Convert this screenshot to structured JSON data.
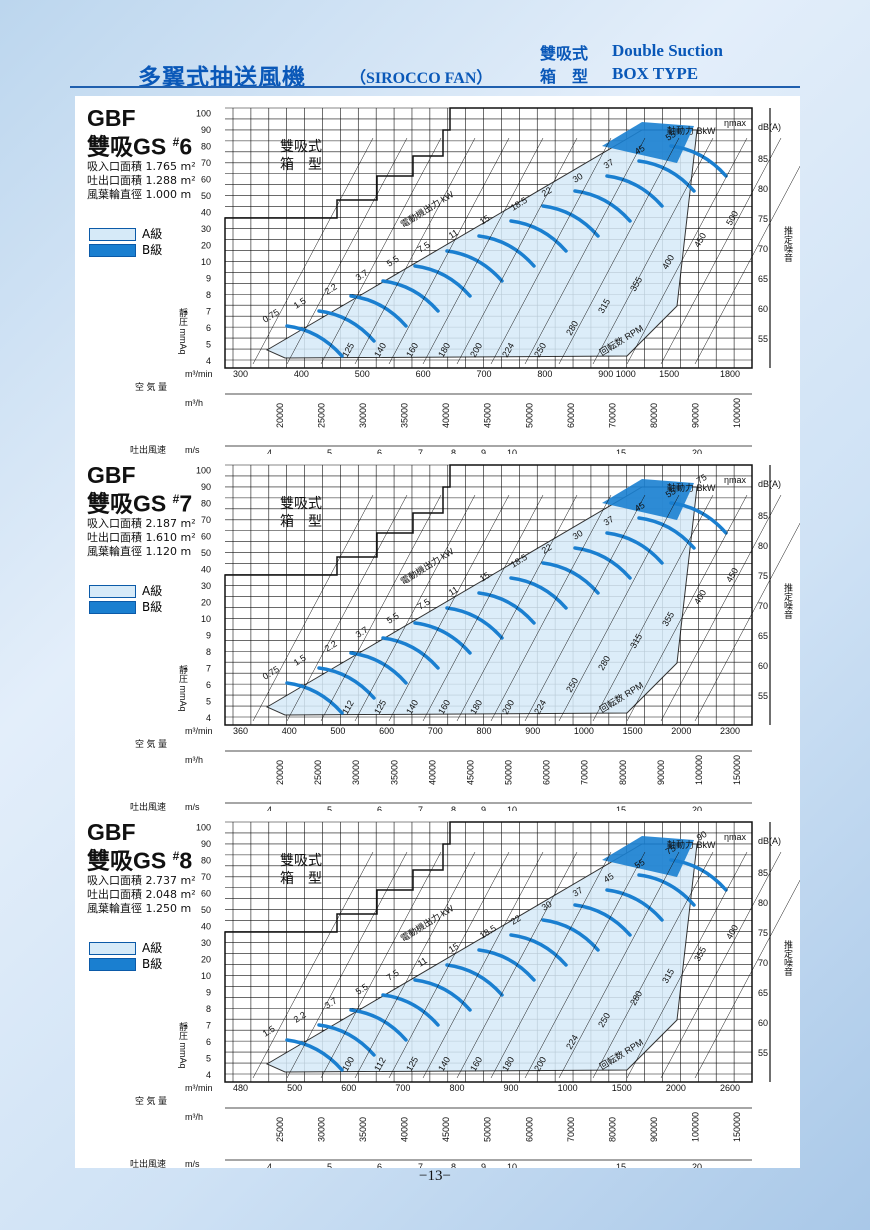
{
  "header": {
    "title_zh": "多翼式抽送風機",
    "title_en": "（SIROCCO FAN）",
    "sub_zh_1": "雙吸式",
    "sub_zh_2": "箱　型",
    "sub_en_1": "Double Suction",
    "sub_en_2": "BOX TYPE"
  },
  "common": {
    "box_type_1": "雙吸式",
    "box_type_2": "箱　型",
    "legend_a": "A級",
    "legend_b": "B級",
    "static_pressure": "靜圧 mmAq",
    "noise": "推定噪音",
    "airflow_label": "空 気 量",
    "airflow_min_unit": "m³/min",
    "airflow_h_unit": "m³/h",
    "outlet_velocity": "吐出風速",
    "velocity_unit": "m/s",
    "power_label": "電動機出力 kW",
    "shaft_power": "軸動力 BkW",
    "eta": "ηmax",
    "db_unit": "dB(A)",
    "rpm_label": "回転数 RPM",
    "y_ticks": [
      "4",
      "5",
      "6",
      "7",
      "8",
      "9",
      "10",
      "20",
      "30",
      "40",
      "50",
      "60",
      "70",
      "80",
      "90",
      "100"
    ],
    "db_ticks": [
      "55",
      "60",
      "65",
      "70",
      "75",
      "80",
      "85"
    ],
    "velocity_ticks": [
      "4",
      "5",
      "6",
      "7",
      "8",
      "9",
      "10",
      "15",
      "20"
    ]
  },
  "panels": [
    {
      "model_1": "GBF",
      "model_2": "雙吸GS",
      "model_no": "6",
      "inlet": "吸入口面積  1.765 m²",
      "outlet": "吐出口面積  1.288 m²",
      "impeller": "風葉輪直徑  1.000 m",
      "min_ticks": [
        "300",
        "400",
        "500",
        "600",
        "700",
        "800",
        "900 1000",
        "1500",
        "1800"
      ],
      "h_ticks": [
        "20000",
        "25000",
        "30000",
        "35000",
        "40000",
        "45000",
        "50000",
        "60000",
        "70000",
        "80000",
        "90000",
        "100000"
      ],
      "kw": [
        "0.75",
        "1.5",
        "2.2",
        "3.7",
        "5.5",
        "7.5",
        "11",
        "15",
        "18.5",
        "22",
        "30",
        "37",
        "45",
        "55"
      ],
      "rpm": [
        "125",
        "140",
        "160",
        "180",
        "200",
        "224",
        "250",
        "280",
        "315",
        "355",
        "400",
        "450",
        "500"
      ]
    },
    {
      "model_1": "GBF",
      "model_2": "雙吸GS",
      "model_no": "7",
      "inlet": "吸入口面積  2.187 m²",
      "outlet": "吐出口面積  1.610 m²",
      "impeller": "風葉輪直徑  1.120 m",
      "min_ticks": [
        "360",
        "400",
        "500",
        "600",
        "700",
        "800",
        "900",
        "1000",
        "1500",
        "2000",
        "2300"
      ],
      "h_ticks": [
        "20000",
        "25000",
        "30000",
        "35000",
        "40000",
        "45000",
        "50000",
        "60000",
        "70000",
        "80000",
        "90000",
        "100000",
        "150000"
      ],
      "kw": [
        "0.75",
        "1.5",
        "2.2",
        "3.7",
        "5.5",
        "7.5",
        "11",
        "15",
        "18.5",
        "22",
        "30",
        "37",
        "45",
        "55",
        "75"
      ],
      "rpm": [
        "112",
        "125",
        "140",
        "160",
        "180",
        "200",
        "224",
        "250",
        "280",
        "315",
        "355",
        "400",
        "450"
      ]
    },
    {
      "model_1": "GBF",
      "model_2": "雙吸GS",
      "model_no": "8",
      "inlet": "吸入口面積  2.737 m²",
      "outlet": "吐出口面積  2.048 m²",
      "impeller": "風葉輪直徑  1.250 m",
      "min_ticks": [
        "480",
        "500",
        "600",
        "700",
        "800",
        "900",
        "1000",
        "1500",
        "2000",
        "2600"
      ],
      "h_ticks": [
        "25000",
        "30000",
        "35000",
        "40000",
        "45000",
        "50000",
        "60000",
        "70000",
        "80000",
        "90000",
        "100000",
        "150000"
      ],
      "kw": [
        "1.5",
        "2.2",
        "3.7",
        "5.5",
        "7.5",
        "11",
        "15",
        "18.5",
        "22",
        "30",
        "37",
        "45",
        "55",
        "75",
        "90"
      ],
      "rpm": [
        "100",
        "112",
        "125",
        "140",
        "160",
        "180",
        "200",
        "224",
        "250",
        "280",
        "315",
        "355",
        "400"
      ]
    }
  ],
  "page_number": "−13−"
}
